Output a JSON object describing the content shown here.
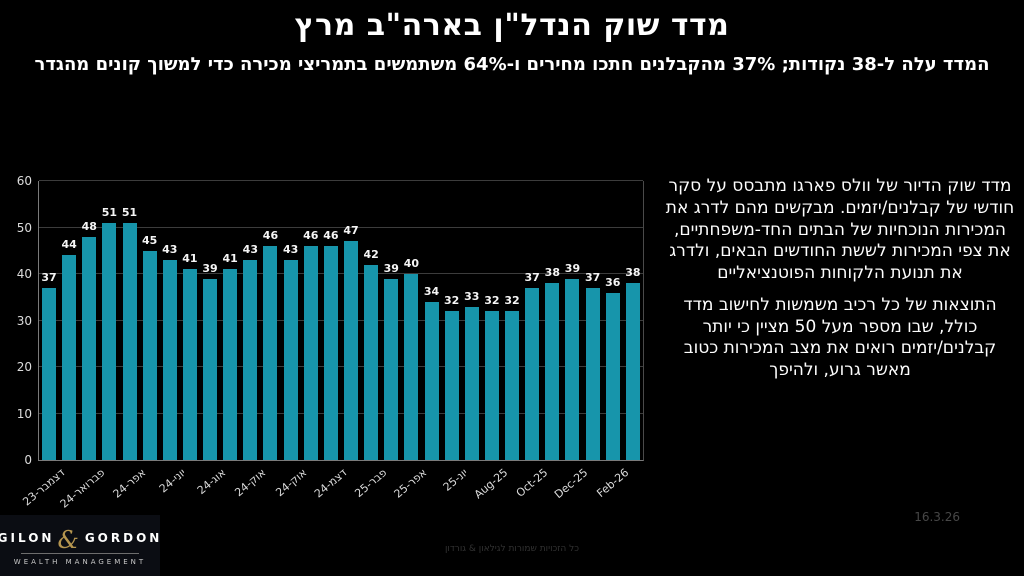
{
  "slide": {
    "title": "מדד שוק הנדל\"ן בארה\"ב מרץ",
    "subtitle": "המדד עלה ל-38 נקודות; 37% מהקבלנים חתכו מחירים ו-64% משתמשים בתמריצי מכירה כדי למשוך קונים מהגדר"
  },
  "chart_data": {
    "type": "bar",
    "title": "",
    "values": [
      37,
      44,
      48,
      51,
      51,
      45,
      43,
      41,
      39,
      41,
      43,
      46,
      43,
      46,
      46,
      47,
      42,
      39,
      40,
      34,
      32,
      33,
      32,
      32,
      37,
      38,
      39,
      37,
      36,
      38
    ],
    "x_labels": [
      "דצמבר-23",
      "פברואר-24",
      "אפר-24",
      "יוני-24",
      "אוג-24",
      "אוק-24",
      "אוק-24",
      "דצמ-24",
      "פבר-25",
      "אפר-25",
      "יונ-25",
      "Aug-25",
      "Oct-25",
      "Dec-25",
      "Feb-26"
    ],
    "x_label_every": 2,
    "y_ticks": [
      0,
      10,
      20,
      30,
      40,
      50,
      60
    ],
    "ylim": [
      0,
      60
    ],
    "bar_color": "#1795ab",
    "grid": true,
    "legend": "none",
    "data_labels": true
  },
  "sideText": {
    "paragraph1": "מדד שוק הדיור של וולס פארגו מתבסס על סקר חודשי של קבלנים/יזמים. מבקשים מהם לדרג את  המכירות הנוכחיות של הבתים החד-משפחתיים, את צפי המכירות לששת החודשים הבאים, ולדרג את תנועת הלקוחות הפוטנציאליים",
    "paragraph2": "התוצאות של כל רכיב משמשות לחישוב מדד כולל, שבו מספר מעל 50 מציין כי יותר קבלנים/יזמים רואים את מצב  המכירות כטוב מאשר גרוע, ולהיפך"
  },
  "footer": {
    "logo": {
      "name1": "GILON",
      "amp": "&",
      "name2": "GORDON",
      "tagline": "WEALTH MANAGEMENT"
    },
    "copyright": "כל הזכויות שמורות לגילאון & גורדון",
    "date": "16.3.26"
  }
}
